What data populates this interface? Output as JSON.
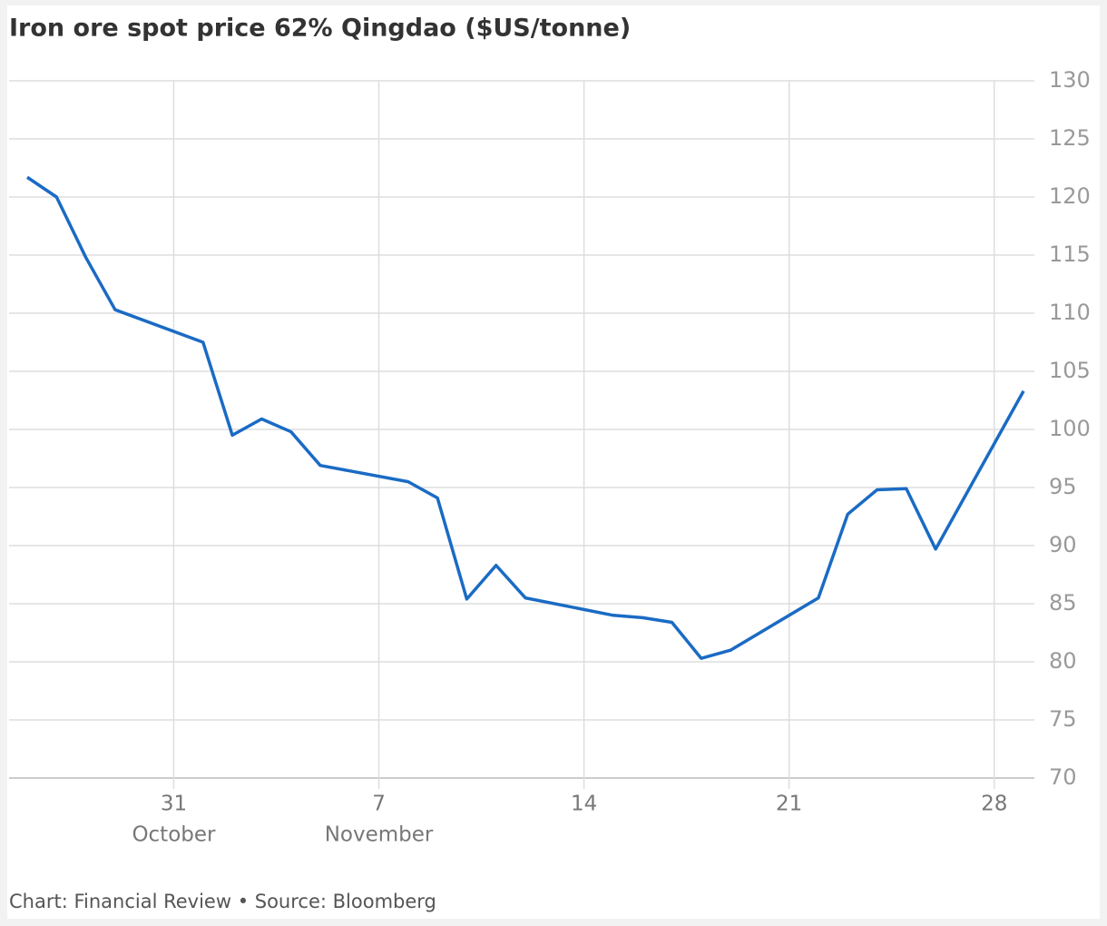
{
  "chart_data": {
    "type": "line",
    "title": "Iron ore spot price 62% Qingdao ($US/tonne)",
    "source": "Chart: Financial Review • Source: Bloomberg",
    "x": [
      "10-26",
      "10-27",
      "10-28",
      "10-29",
      "11-01",
      "11-02",
      "11-03",
      "11-04",
      "11-05",
      "11-08",
      "11-09",
      "11-10",
      "11-11",
      "11-12",
      "11-15",
      "11-16",
      "11-17",
      "11-18",
      "11-19",
      "11-22",
      "11-23",
      "11-24",
      "11-25",
      "11-26",
      "11-29"
    ],
    "series": [
      {
        "name": "Iron ore spot price",
        "color": "#1a6bc4",
        "values": [
          121.7,
          120.0,
          114.8,
          110.3,
          107.5,
          99.5,
          100.9,
          99.8,
          96.9,
          95.5,
          94.1,
          85.4,
          88.3,
          85.5,
          84.0,
          83.8,
          83.4,
          80.3,
          81.0,
          85.5,
          92.7,
          94.8,
          94.9,
          89.7,
          103.3
        ]
      }
    ],
    "xlim": [
      "10-26",
      "11-29"
    ],
    "xticks": [
      {
        "value": "10-31",
        "label": "31"
      },
      {
        "value": "11-07",
        "label": "7"
      },
      {
        "value": "11-14",
        "label": "14"
      },
      {
        "value": "11-21",
        "label": "21"
      },
      {
        "value": "11-28",
        "label": "28"
      }
    ],
    "xtick_months": [
      {
        "value": "10-31",
        "label": "October"
      },
      {
        "value": "11-07",
        "label": "November"
      }
    ],
    "ylim": [
      70,
      130
    ],
    "yticks": [
      70,
      75,
      80,
      85,
      90,
      95,
      100,
      105,
      110,
      115,
      120,
      125,
      130
    ],
    "grid": true
  }
}
